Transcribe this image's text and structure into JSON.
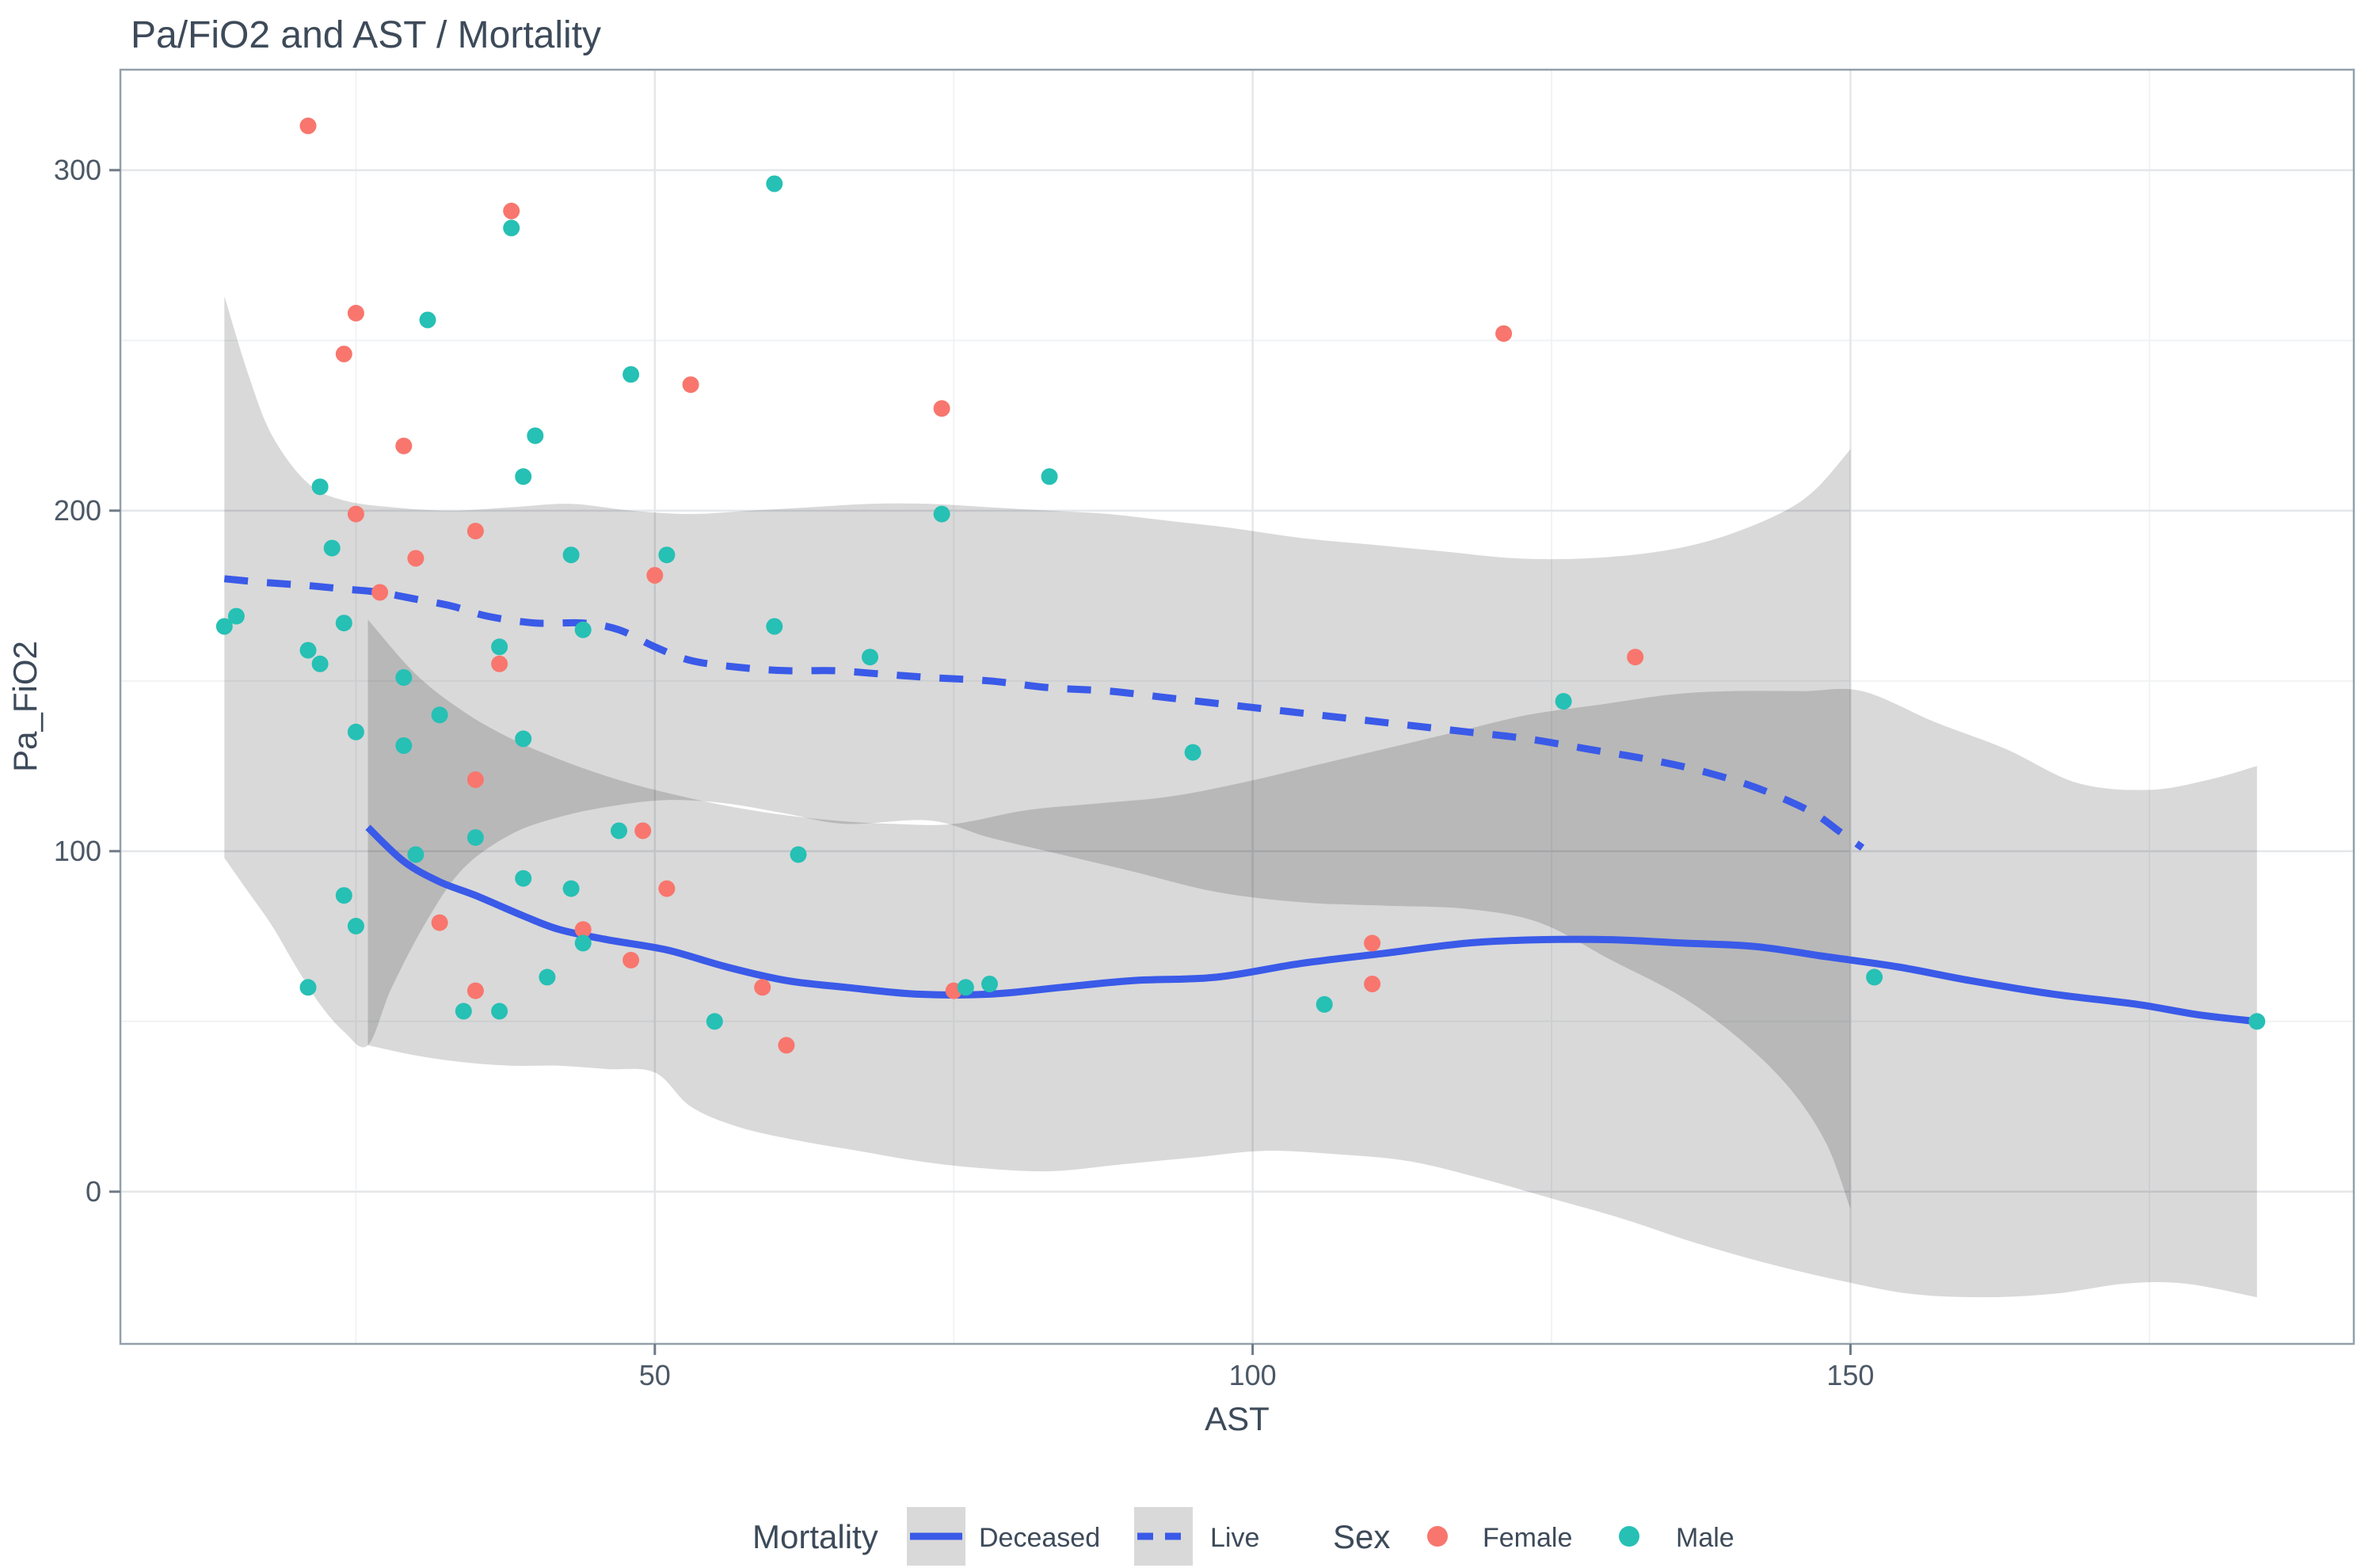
{
  "title": "Pa/FiO2 and AST / Mortality",
  "axes": {
    "x": {
      "label": "AST",
      "min": 5.3,
      "max": 192.1,
      "major_ticks": [
        {
          "v": 50,
          "label": "50"
        },
        {
          "v": 100,
          "label": "100"
        },
        {
          "v": 150,
          "label": "150"
        }
      ],
      "minor_ticks": [
        25,
        75,
        125,
        175
      ]
    },
    "y": {
      "label": "Pa_FiO2",
      "min": -44.7,
      "max": 329.5,
      "major_ticks": [
        {
          "v": 0,
          "label": "0"
        },
        {
          "v": 100,
          "label": "100"
        },
        {
          "v": 200,
          "label": "200"
        },
        {
          "v": 300,
          "label": "300"
        }
      ],
      "minor_ticks": [
        50,
        150,
        250
      ]
    }
  },
  "legend": {
    "mortality": {
      "title": "Mortality",
      "items": [
        {
          "label": "Deceased",
          "style": "solid"
        },
        {
          "label": "Live",
          "style": "dashed"
        }
      ]
    },
    "sex": {
      "title": "Sex",
      "items": [
        {
          "label": "Female",
          "color_key": "female"
        },
        {
          "label": "Male",
          "color_key": "male"
        }
      ]
    }
  },
  "colors": {
    "female": "#F8766D",
    "male": "#26C0B5",
    "smooth_line": "#3A5AE8",
    "ribbon": "rgba(0,0,0,0.15)",
    "title_text": "#3D4A59",
    "axis_text": "#3D4A59",
    "tick_text": "#4C5866",
    "grid_major": "#E4E7EA",
    "grid_minor": "#F1F3F5",
    "panel_border": "#93A0AC",
    "tick_mark": "#6F7A86"
  },
  "chart_data": {
    "type": "scatter",
    "title": "Pa/FiO2 and AST / Mortality",
    "xlabel": "AST",
    "ylabel": "Pa_FiO2",
    "xlim": [
      5.3,
      192.1
    ],
    "ylim": [
      -44.7,
      329.5
    ],
    "grid": "on",
    "legend_position": "bottom",
    "points": {
      "female": [
        [
          21,
          313
        ],
        [
          38,
          288
        ],
        [
          25,
          258
        ],
        [
          24,
          246
        ],
        [
          29,
          219
        ],
        [
          35,
          194
        ],
        [
          25,
          199
        ],
        [
          27,
          176
        ],
        [
          30,
          186
        ],
        [
          50,
          181
        ],
        [
          37,
          155
        ],
        [
          35,
          121
        ],
        [
          49,
          106
        ],
        [
          51,
          89
        ],
        [
          32,
          79
        ],
        [
          44,
          77
        ],
        [
          48,
          68
        ],
        [
          35,
          59
        ],
        [
          53,
          237
        ],
        [
          74,
          230
        ],
        [
          59,
          60
        ],
        [
          75,
          59
        ],
        [
          61,
          43
        ],
        [
          121,
          252
        ],
        [
          132,
          157
        ],
        [
          110,
          73
        ],
        [
          110,
          61
        ]
      ],
      "male": [
        [
          38,
          283
        ],
        [
          31,
          256
        ],
        [
          48,
          240
        ],
        [
          40,
          222
        ],
        [
          39,
          210
        ],
        [
          43,
          187
        ],
        [
          22,
          207
        ],
        [
          23,
          189
        ],
        [
          44,
          165
        ],
        [
          14,
          166
        ],
        [
          15,
          169
        ],
        [
          24,
          167
        ],
        [
          37,
          160
        ],
        [
          21,
          159
        ],
        [
          22,
          155
        ],
        [
          29,
          151
        ],
        [
          32,
          140
        ],
        [
          25,
          135
        ],
        [
          29,
          131
        ],
        [
          39,
          133
        ],
        [
          47,
          106
        ],
        [
          35,
          104
        ],
        [
          30,
          99
        ],
        [
          39,
          92
        ],
        [
          43,
          89
        ],
        [
          24,
          87
        ],
        [
          25,
          78
        ],
        [
          44,
          73
        ],
        [
          41,
          63
        ],
        [
          21,
          60
        ],
        [
          34,
          53
        ],
        [
          37,
          53
        ],
        [
          60,
          296
        ],
        [
          83,
          210
        ],
        [
          74,
          199
        ],
        [
          51,
          187
        ],
        [
          60,
          166
        ],
        [
          68,
          157
        ],
        [
          95,
          129
        ],
        [
          62,
          99
        ],
        [
          76,
          60
        ],
        [
          78,
          61
        ],
        [
          55,
          50
        ],
        [
          106,
          55
        ],
        [
          126,
          144
        ],
        [
          152,
          63
        ],
        [
          184,
          50
        ]
      ]
    },
    "smooths": [
      {
        "name": "Deceased",
        "line_style": "solid",
        "line": [
          [
            26,
            107
          ],
          [
            29,
            97
          ],
          [
            32,
            91
          ],
          [
            35,
            87
          ],
          [
            39,
            81
          ],
          [
            42,
            77
          ],
          [
            46,
            74
          ],
          [
            51,
            71
          ],
          [
            56,
            66
          ],
          [
            61,
            62
          ],
          [
            66,
            60
          ],
          [
            72,
            58
          ],
          [
            78,
            58
          ],
          [
            84,
            60
          ],
          [
            90,
            62
          ],
          [
            97,
            63
          ],
          [
            104,
            67
          ],
          [
            111,
            70
          ],
          [
            118,
            73
          ],
          [
            124,
            74
          ],
          [
            130,
            74
          ],
          [
            136,
            73
          ],
          [
            142,
            72
          ],
          [
            148,
            69
          ],
          [
            154,
            66
          ],
          [
            160,
            62
          ],
          [
            167,
            58
          ],
          [
            174,
            55
          ],
          [
            179,
            52
          ],
          [
            184,
            50
          ]
        ],
        "ribbon_upper": [
          [
            26,
            168
          ],
          [
            30,
            152
          ],
          [
            34,
            141
          ],
          [
            38,
            133
          ],
          [
            42,
            127
          ],
          [
            46,
            122
          ],
          [
            50,
            118
          ],
          [
            55,
            114
          ],
          [
            60,
            111
          ],
          [
            65,
            109
          ],
          [
            70,
            108
          ],
          [
            75,
            108
          ],
          [
            81,
            112
          ],
          [
            87,
            114
          ],
          [
            93,
            116
          ],
          [
            99,
            120
          ],
          [
            105,
            125
          ],
          [
            111,
            130
          ],
          [
            117,
            135
          ],
          [
            123,
            140
          ],
          [
            129,
            143
          ],
          [
            135,
            146
          ],
          [
            140,
            147
          ],
          [
            146,
            147
          ],
          [
            151,
            147
          ],
          [
            157,
            138
          ],
          [
            163,
            130
          ],
          [
            169,
            120
          ],
          [
            175,
            118
          ],
          [
            180,
            121
          ],
          [
            184,
            125
          ]
        ],
        "ribbon_lower": [
          [
            26,
            43
          ],
          [
            30,
            40
          ],
          [
            34,
            38
          ],
          [
            38,
            37
          ],
          [
            42,
            37
          ],
          [
            46,
            36
          ],
          [
            50,
            35
          ],
          [
            53,
            25
          ],
          [
            57,
            19
          ],
          [
            62,
            15
          ],
          [
            67,
            12
          ],
          [
            72,
            9
          ],
          [
            77,
            7
          ],
          [
            83,
            6
          ],
          [
            89,
            8
          ],
          [
            95,
            10
          ],
          [
            101,
            12
          ],
          [
            107,
            11
          ],
          [
            113,
            9
          ],
          [
            119,
            4
          ],
          [
            125,
            -2
          ],
          [
            131,
            -8
          ],
          [
            137,
            -15
          ],
          [
            143,
            -21
          ],
          [
            149,
            -26
          ],
          [
            155,
            -30
          ],
          [
            161,
            -31
          ],
          [
            167,
            -30
          ],
          [
            173,
            -27
          ],
          [
            178,
            -27
          ],
          [
            184,
            -31
          ]
        ]
      },
      {
        "name": "Live",
        "line_style": "dashed",
        "line": [
          [
            14,
            180
          ],
          [
            17,
            179
          ],
          [
            21,
            178
          ],
          [
            24,
            177
          ],
          [
            27,
            176
          ],
          [
            30,
            174
          ],
          [
            33,
            172
          ],
          [
            36,
            169
          ],
          [
            40,
            167
          ],
          [
            44,
            167
          ],
          [
            47,
            165
          ],
          [
            50,
            160
          ],
          [
            53,
            156
          ],
          [
            57,
            154
          ],
          [
            61,
            153
          ],
          [
            65,
            153
          ],
          [
            69,
            152
          ],
          [
            73,
            151
          ],
          [
            78,
            150
          ],
          [
            83,
            148
          ],
          [
            88,
            147
          ],
          [
            93,
            145
          ],
          [
            98,
            143
          ],
          [
            103,
            141
          ],
          [
            108,
            139
          ],
          [
            113,
            137
          ],
          [
            118,
            135
          ],
          [
            123,
            133
          ],
          [
            128,
            130
          ],
          [
            133,
            127
          ],
          [
            137,
            124
          ],
          [
            141,
            120
          ],
          [
            144,
            116
          ],
          [
            147,
            111
          ],
          [
            149,
            106
          ],
          [
            151,
            101
          ]
        ],
        "ribbon_upper": [
          [
            14,
            263
          ],
          [
            16,
            240
          ],
          [
            18,
            222
          ],
          [
            21,
            208
          ],
          [
            24,
            203
          ],
          [
            28,
            201
          ],
          [
            33,
            200
          ],
          [
            38,
            201
          ],
          [
            43,
            202
          ],
          [
            48,
            200
          ],
          [
            53,
            199
          ],
          [
            58,
            200
          ],
          [
            63,
            201
          ],
          [
            68,
            202
          ],
          [
            73,
            202
          ],
          [
            78,
            201
          ],
          [
            83,
            200
          ],
          [
            88,
            199
          ],
          [
            93,
            197
          ],
          [
            98,
            195
          ],
          [
            104,
            192
          ],
          [
            110,
            190
          ],
          [
            116,
            188
          ],
          [
            122,
            186
          ],
          [
            128,
            186
          ],
          [
            134,
            188
          ],
          [
            139,
            192
          ],
          [
            144,
            199
          ],
          [
            147,
            206
          ],
          [
            150,
            218
          ]
        ],
        "ribbon_lower": [
          [
            14,
            98
          ],
          [
            16,
            88
          ],
          [
            18,
            78
          ],
          [
            20,
            66
          ],
          [
            22,
            55
          ],
          [
            24,
            47
          ],
          [
            26,
            43
          ],
          [
            28,
            60
          ],
          [
            31,
            80
          ],
          [
            34,
            95
          ],
          [
            38,
            105
          ],
          [
            42,
            110
          ],
          [
            46,
            113
          ],
          [
            51,
            115
          ],
          [
            56,
            114
          ],
          [
            61,
            111
          ],
          [
            66,
            108
          ],
          [
            73,
            109
          ],
          [
            78,
            104
          ],
          [
            84,
            99
          ],
          [
            90,
            94
          ],
          [
            97,
            88
          ],
          [
            104,
            85
          ],
          [
            111,
            84
          ],
          [
            118,
            83
          ],
          [
            124,
            79
          ],
          [
            130,
            68
          ],
          [
            136,
            57
          ],
          [
            141,
            44
          ],
          [
            145,
            30
          ],
          [
            148,
            14
          ],
          [
            150,
            -5
          ]
        ]
      }
    ]
  }
}
